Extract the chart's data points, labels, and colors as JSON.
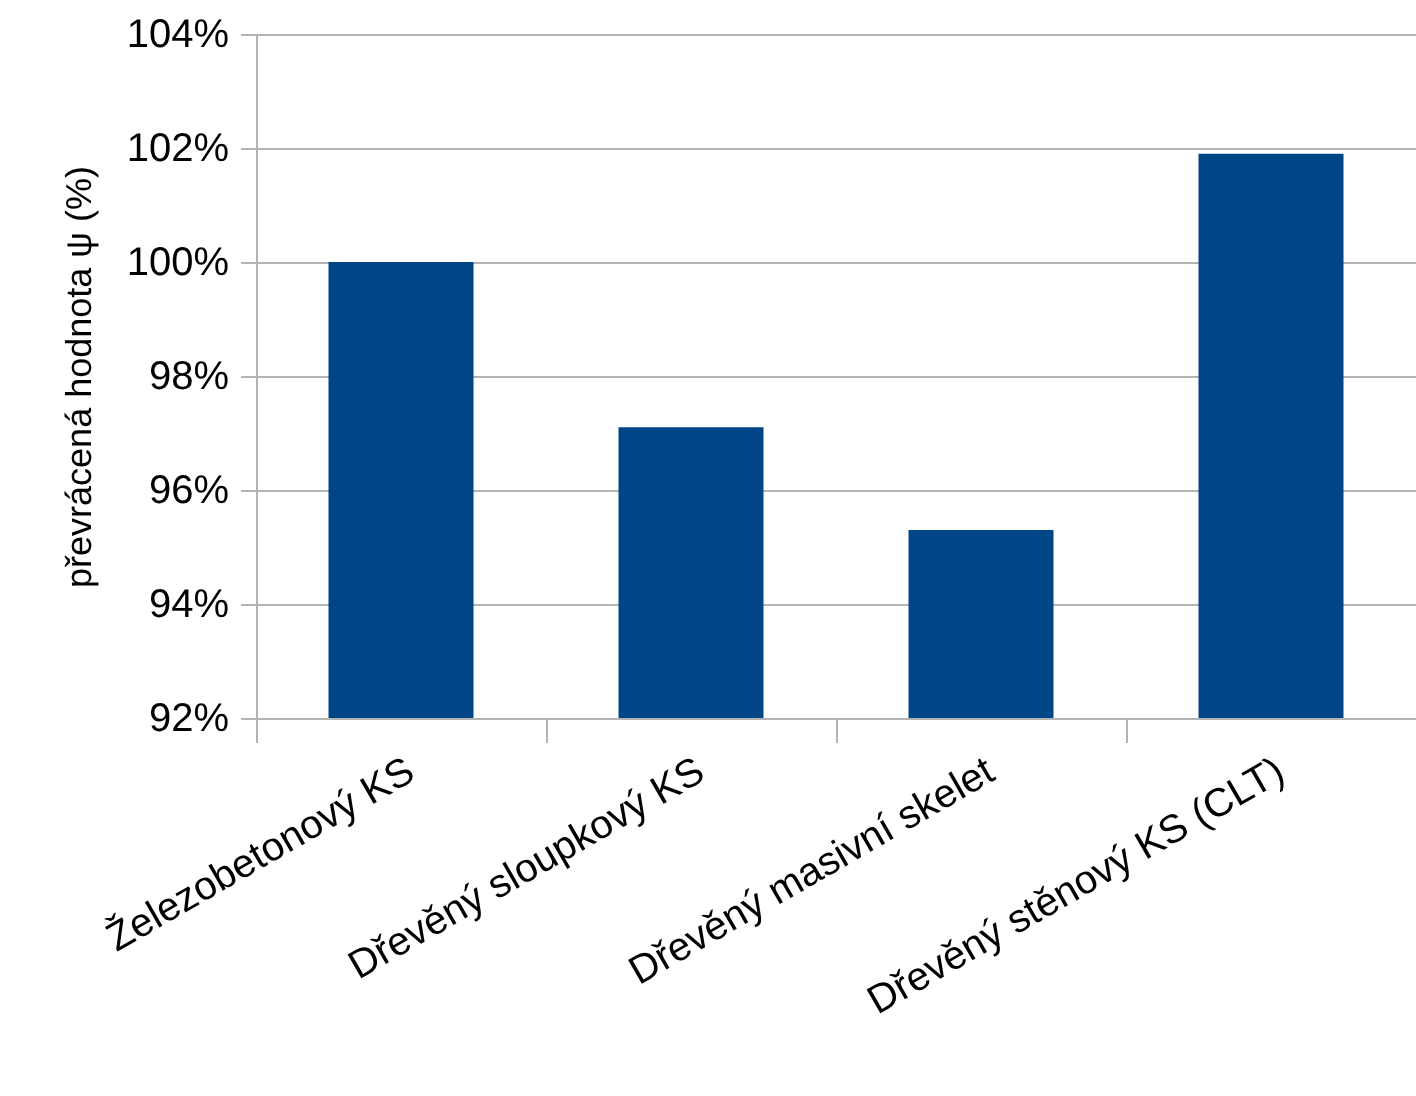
{
  "chart_data": {
    "type": "bar",
    "ylabel": "převrácená hodnota ψ (%)",
    "categories": [
      "Železobetonový KS",
      "Dřevěný sloupkový KS",
      "Dřevěný masivní skelet",
      "Dřevěný stěnový KS (CLT)"
    ],
    "values": [
      100,
      97.1,
      95.3,
      101.9
    ],
    "color": "#004586",
    "ylim": [
      92,
      104
    ],
    "yticks": [
      {
        "value": 92,
        "label": "92%"
      },
      {
        "value": 94,
        "label": "94%"
      },
      {
        "value": 96,
        "label": "96%"
      },
      {
        "value": 98,
        "label": "98%"
      },
      {
        "value": 100,
        "label": "100%"
      },
      {
        "value": 102,
        "label": "102%"
      },
      {
        "value": 104,
        "label": "104%"
      }
    ],
    "grid": "y"
  }
}
